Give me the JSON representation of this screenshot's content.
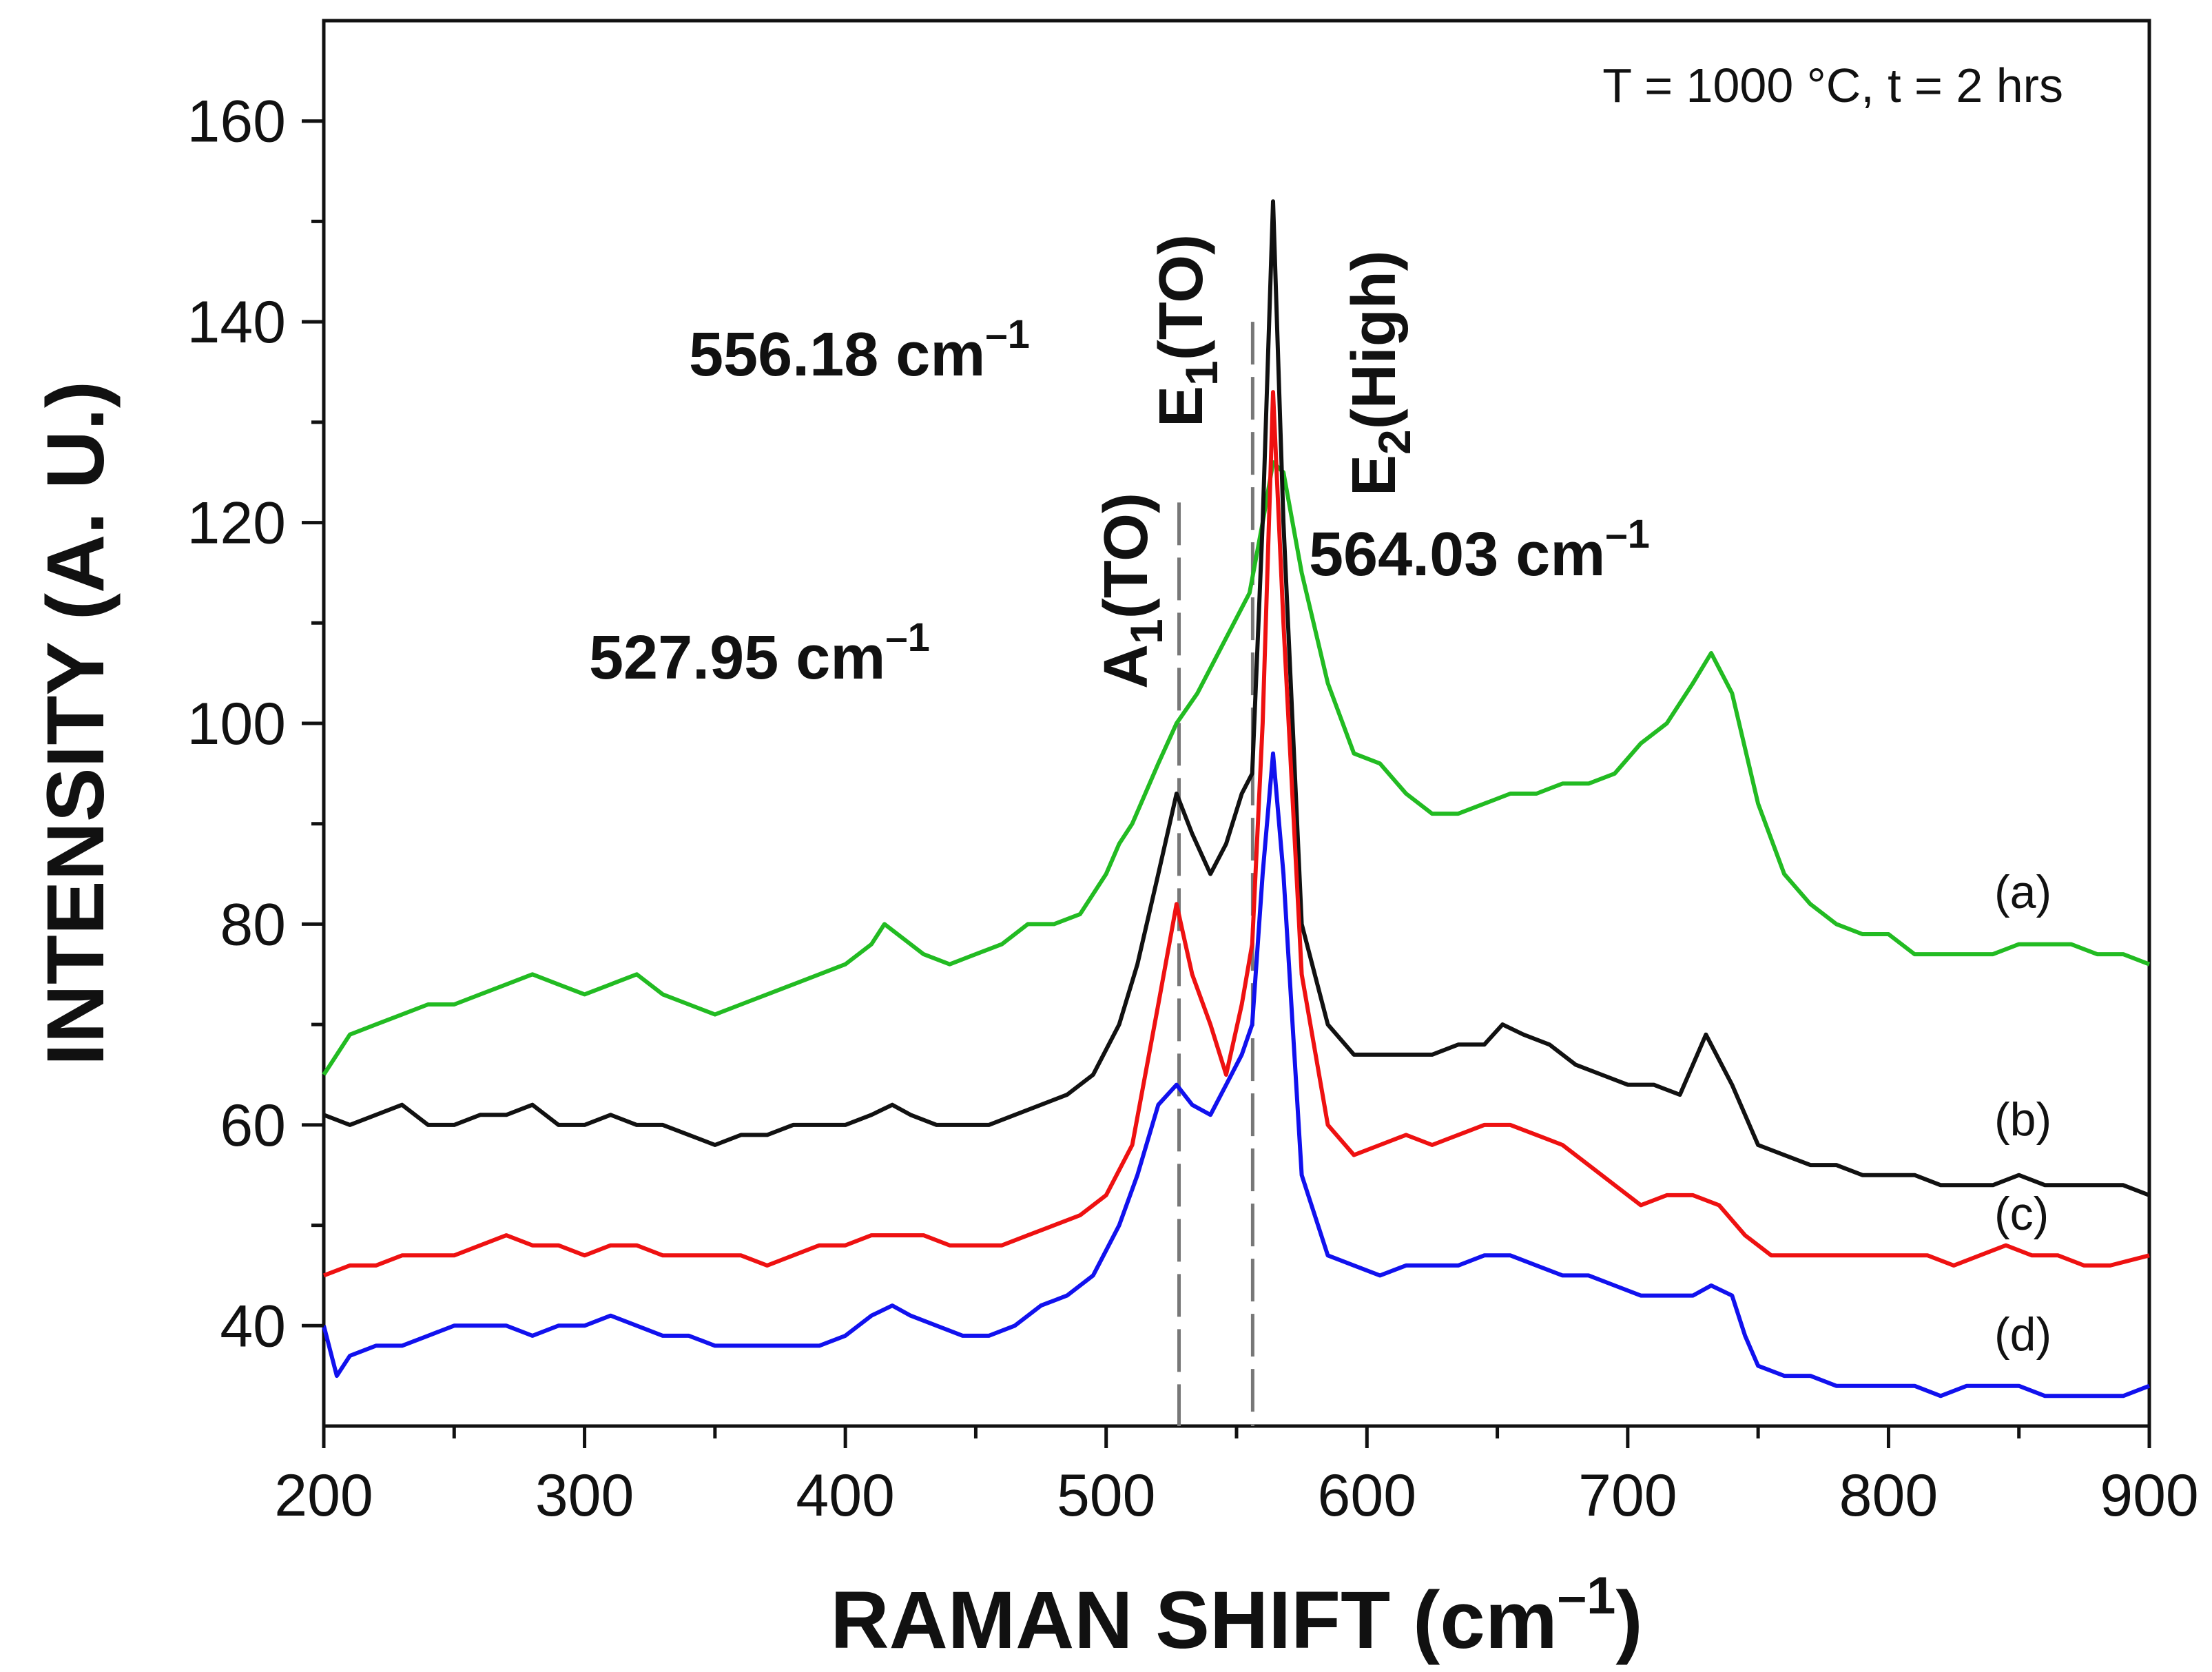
{
  "chart_data": {
    "type": "line",
    "title": "",
    "annotation": "T = 1000 °C, t = 2 hrs",
    "xlabel": "RAMAN SHIFT (cm",
    "xlabel_sup": "–1",
    "xlabel_end": ")",
    "ylabel": "INTENSITY (A. U.)",
    "xlim": [
      200,
      900
    ],
    "ylim": [
      30,
      170
    ],
    "xticks": [
      200,
      300,
      400,
      500,
      600,
      700,
      800,
      900
    ],
    "yticks": [
      40,
      60,
      80,
      100,
      120,
      140,
      160
    ],
    "grid": false,
    "reference_lines": [
      {
        "x": 527.95,
        "y_top": 122,
        "style": "long-dash"
      },
      {
        "x": 556.18,
        "y_top": 140,
        "style": "long-dash"
      }
    ],
    "peak_labels": [
      {
        "x": 556.18,
        "text": "556.18 cm",
        "sup": "–1"
      },
      {
        "x": 527.95,
        "text": "527.95 cm",
        "sup": "–1"
      },
      {
        "x": 564.03,
        "text": "564.03 cm",
        "sup": "–1"
      }
    ],
    "mode_labels": [
      {
        "name": "A1(TO)",
        "base": "A",
        "sub": "1",
        "rest": "(TO)"
      },
      {
        "name": "E1(TO)",
        "base": "E",
        "sub": "1",
        "rest": "(TO)"
      },
      {
        "name": "E2(High)",
        "base": "E",
        "sub": "2",
        "rest": "(High)"
      }
    ],
    "series": [
      {
        "name": "(a)",
        "color": "#22bb22",
        "x": [
          200,
          210,
          220,
          230,
          240,
          250,
          260,
          270,
          280,
          290,
          300,
          310,
          320,
          330,
          340,
          350,
          360,
          370,
          380,
          390,
          400,
          410,
          415,
          420,
          430,
          440,
          450,
          460,
          470,
          480,
          490,
          500,
          505,
          510,
          520,
          527,
          535,
          545,
          555,
          560,
          564,
          568,
          575,
          585,
          595,
          605,
          615,
          625,
          635,
          645,
          655,
          665,
          675,
          685,
          695,
          705,
          715,
          725,
          732,
          740,
          750,
          760,
          770,
          780,
          790,
          800,
          810,
          820,
          830,
          840,
          850,
          860,
          870,
          880,
          890,
          900
        ],
        "y": [
          65,
          69,
          70,
          71,
          72,
          72,
          73,
          74,
          75,
          74,
          73,
          74,
          75,
          73,
          72,
          71,
          72,
          73,
          74,
          75,
          76,
          78,
          80,
          79,
          77,
          76,
          77,
          78,
          80,
          80,
          81,
          85,
          88,
          90,
          96,
          100,
          103,
          108,
          113,
          120,
          126,
          125,
          115,
          104,
          97,
          96,
          93,
          91,
          91,
          92,
          93,
          93,
          94,
          94,
          95,
          98,
          100,
          104,
          107,
          103,
          92,
          85,
          82,
          80,
          79,
          79,
          77,
          77,
          77,
          77,
          78,
          78,
          78,
          77,
          77,
          76
        ]
      },
      {
        "name": "(b)",
        "color": "#111111",
        "x": [
          200,
          210,
          220,
          230,
          240,
          250,
          260,
          270,
          280,
          290,
          300,
          310,
          320,
          330,
          340,
          350,
          360,
          370,
          380,
          390,
          400,
          410,
          418,
          425,
          435,
          445,
          455,
          465,
          475,
          485,
          495,
          505,
          512,
          520,
          527,
          533,
          540,
          546,
          552,
          556,
          560,
          564,
          568,
          575,
          585,
          595,
          605,
          615,
          625,
          635,
          645,
          652,
          660,
          670,
          680,
          690,
          700,
          710,
          720,
          730,
          740,
          750,
          760,
          770,
          780,
          790,
          800,
          810,
          820,
          830,
          840,
          850,
          860,
          870,
          880,
          890,
          900
        ],
        "y": [
          61,
          60,
          61,
          62,
          60,
          60,
          61,
          61,
          62,
          60,
          60,
          61,
          60,
          60,
          59,
          58,
          59,
          59,
          60,
          60,
          60,
          61,
          62,
          61,
          60,
          60,
          60,
          61,
          62,
          63,
          65,
          70,
          76,
          85,
          93,
          89,
          85,
          88,
          93,
          95,
          120,
          152,
          120,
          80,
          70,
          67,
          67,
          67,
          67,
          68,
          68,
          70,
          69,
          68,
          66,
          65,
          64,
          64,
          63,
          69,
          64,
          58,
          57,
          56,
          56,
          55,
          55,
          55,
          54,
          54,
          54,
          55,
          54,
          54,
          54,
          54,
          53
        ]
      },
      {
        "name": "(c)",
        "color": "#ee1111",
        "x": [
          200,
          210,
          220,
          230,
          240,
          250,
          260,
          270,
          280,
          290,
          300,
          310,
          320,
          330,
          340,
          350,
          360,
          370,
          380,
          390,
          400,
          410,
          420,
          430,
          440,
          450,
          460,
          470,
          480,
          490,
          500,
          510,
          520,
          527,
          533,
          540,
          546,
          552,
          556,
          560,
          564,
          568,
          575,
          585,
          595,
          605,
          615,
          625,
          635,
          645,
          655,
          665,
          675,
          685,
          695,
          705,
          715,
          725,
          735,
          745,
          755,
          765,
          775,
          785,
          795,
          805,
          815,
          825,
          835,
          845,
          855,
          865,
          875,
          885,
          900
        ],
        "y": [
          45,
          46,
          46,
          47,
          47,
          47,
          48,
          49,
          48,
          48,
          47,
          48,
          48,
          47,
          47,
          47,
          47,
          46,
          47,
          48,
          48,
          49,
          49,
          49,
          48,
          48,
          48,
          49,
          50,
          51,
          53,
          58,
          72,
          82,
          75,
          70,
          65,
          72,
          78,
          100,
          133,
          110,
          75,
          60,
          57,
          58,
          59,
          58,
          59,
          60,
          60,
          59,
          58,
          56,
          54,
          52,
          53,
          53,
          52,
          49,
          47,
          47,
          47,
          47,
          47,
          47,
          47,
          46,
          47,
          48,
          47,
          47,
          46,
          46,
          47
        ]
      },
      {
        "name": "(d)",
        "color": "#1111ee",
        "x": [
          200,
          205,
          210,
          220,
          230,
          240,
          250,
          260,
          270,
          280,
          290,
          300,
          310,
          320,
          330,
          340,
          350,
          360,
          370,
          380,
          390,
          400,
          410,
          418,
          425,
          435,
          445,
          455,
          465,
          475,
          485,
          495,
          505,
          512,
          520,
          527,
          533,
          540,
          546,
          552,
          556,
          560,
          564,
          568,
          575,
          585,
          595,
          605,
          615,
          625,
          635,
          645,
          655,
          665,
          675,
          685,
          695,
          705,
          715,
          725,
          732,
          740,
          745,
          750,
          760,
          770,
          780,
          790,
          800,
          810,
          820,
          830,
          840,
          850,
          860,
          870,
          880,
          890,
          900
        ],
        "y": [
          40,
          35,
          37,
          38,
          38,
          39,
          40,
          40,
          40,
          39,
          40,
          40,
          41,
          40,
          39,
          39,
          38,
          38,
          38,
          38,
          38,
          39,
          41,
          42,
          41,
          40,
          39,
          39,
          40,
          42,
          43,
          45,
          50,
          55,
          62,
          64,
          62,
          61,
          64,
          67,
          70,
          85,
          97,
          85,
          55,
          47,
          46,
          45,
          46,
          46,
          46,
          47,
          47,
          46,
          45,
          45,
          44,
          43,
          43,
          43,
          44,
          43,
          39,
          36,
          35,
          35,
          34,
          34,
          34,
          34,
          33,
          34,
          34,
          34,
          33,
          33,
          33,
          33,
          34
        ]
      }
    ]
  }
}
